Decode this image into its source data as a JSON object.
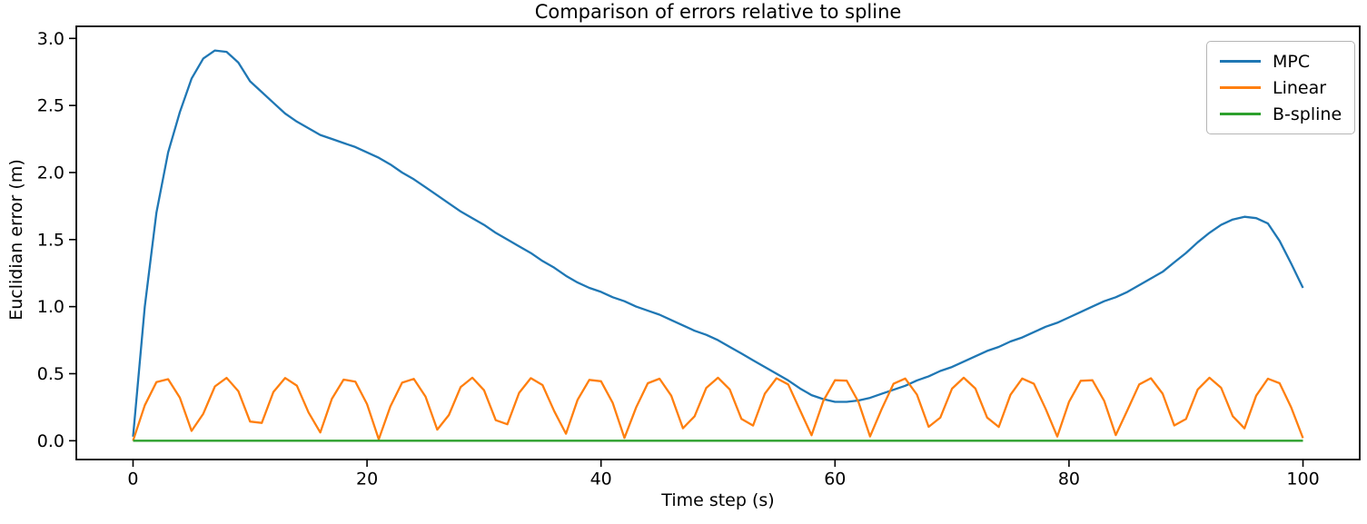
{
  "figure": {
    "title": "Comparison of errors relative to spline",
    "xlabel": "Time step (s)",
    "ylabel": "Euclidian error (m)"
  },
  "legend": {
    "entries": [
      "MPC",
      "Linear",
      "B-spline"
    ]
  },
  "colors": {
    "mpc": "#1f77b4",
    "linear": "#ff7f0e",
    "bspline": "#2ca02c",
    "spine": "#000000",
    "legend_border": "#b5b5b5"
  },
  "chart_data": {
    "type": "line",
    "title": "Comparison of errors relative to spline",
    "xlabel": "Time step (s)",
    "ylabel": "Euclidian error (m)",
    "xlim": [
      -4.85,
      104.85
    ],
    "ylim": [
      -0.14,
      3.09
    ],
    "x_ticks": [
      0,
      20,
      40,
      60,
      80,
      100
    ],
    "y_ticks": [
      0.0,
      0.5,
      1.0,
      1.5,
      2.0,
      2.5,
      3.0
    ],
    "grid": false,
    "legend_position": "upper right",
    "x": [
      0,
      1,
      2,
      3,
      4,
      5,
      6,
      7,
      8,
      9,
      10,
      11,
      12,
      13,
      14,
      15,
      16,
      17,
      18,
      19,
      20,
      21,
      22,
      23,
      24,
      25,
      26,
      27,
      28,
      29,
      30,
      31,
      32,
      33,
      34,
      35,
      36,
      37,
      38,
      39,
      40,
      41,
      42,
      43,
      44,
      45,
      46,
      47,
      48,
      49,
      50,
      51,
      52,
      53,
      54,
      55,
      56,
      57,
      58,
      59,
      60,
      61,
      62,
      63,
      64,
      65,
      66,
      67,
      68,
      69,
      70,
      71,
      72,
      73,
      74,
      75,
      76,
      77,
      78,
      79,
      80,
      81,
      82,
      83,
      84,
      85,
      86,
      87,
      88,
      89,
      90,
      91,
      92,
      93,
      94,
      95,
      96,
      97,
      98,
      99,
      100
    ],
    "series": [
      {
        "name": "MPC",
        "color": "#1f77b4",
        "values": [
          0.03,
          1.0,
          1.7,
          2.15,
          2.45,
          2.7,
          2.85,
          2.91,
          2.9,
          2.82,
          2.68,
          2.6,
          2.52,
          2.44,
          2.38,
          2.33,
          2.28,
          2.25,
          2.22,
          2.19,
          2.15,
          2.11,
          2.06,
          2.0,
          1.95,
          1.89,
          1.83,
          1.77,
          1.71,
          1.66,
          1.61,
          1.55,
          1.5,
          1.45,
          1.4,
          1.34,
          1.29,
          1.23,
          1.18,
          1.14,
          1.11,
          1.07,
          1.04,
          1.0,
          0.97,
          0.94,
          0.9,
          0.86,
          0.82,
          0.79,
          0.75,
          0.7,
          0.65,
          0.6,
          0.55,
          0.5,
          0.45,
          0.39,
          0.34,
          0.31,
          0.29,
          0.29,
          0.3,
          0.32,
          0.35,
          0.38,
          0.41,
          0.45,
          0.48,
          0.52,
          0.55,
          0.59,
          0.63,
          0.67,
          0.7,
          0.74,
          0.77,
          0.81,
          0.85,
          0.88,
          0.92,
          0.96,
          1.0,
          1.04,
          1.07,
          1.11,
          1.16,
          1.21,
          1.26,
          1.33,
          1.4,
          1.48,
          1.55,
          1.61,
          1.65,
          1.67,
          1.66,
          1.62,
          1.49,
          1.32,
          1.14
        ]
      },
      {
        "name": "Linear",
        "color": "#ff7f0e",
        "values": [
          0.0,
          0.264,
          0.437,
          0.459,
          0.321,
          0.073,
          0.201,
          0.405,
          0.469,
          0.37,
          0.143,
          0.133,
          0.364,
          0.468,
          0.411,
          0.211,
          0.062,
          0.313,
          0.456,
          0.441,
          0.273,
          0.011,
          0.256,
          0.433,
          0.461,
          0.329,
          0.083,
          0.192,
          0.4,
          0.47,
          0.377,
          0.153,
          0.123,
          0.357,
          0.467,
          0.415,
          0.22,
          0.052,
          0.305,
          0.454,
          0.444,
          0.282,
          0.021,
          0.247,
          0.429,
          0.463,
          0.336,
          0.093,
          0.182,
          0.394,
          0.47,
          0.383,
          0.163,
          0.113,
          0.35,
          0.466,
          0.42,
          0.229,
          0.041,
          0.297,
          0.451,
          0.448,
          0.29,
          0.032,
          0.238,
          0.425,
          0.464,
          0.344,
          0.104,
          0.172,
          0.388,
          0.47,
          0.389,
          0.173,
          0.103,
          0.343,
          0.464,
          0.425,
          0.238,
          0.031,
          0.289,
          0.447,
          0.451,
          0.298,
          0.042,
          0.229,
          0.42,
          0.466,
          0.351,
          0.114,
          0.162,
          0.382,
          0.47,
          0.395,
          0.183,
          0.092,
          0.336,
          0.463,
          0.429,
          0.247,
          0.02
        ]
      },
      {
        "name": "B-spline",
        "color": "#2ca02c",
        "values": [
          0,
          0,
          0,
          0,
          0,
          0,
          0,
          0,
          0,
          0,
          0,
          0,
          0,
          0,
          0,
          0,
          0,
          0,
          0,
          0,
          0,
          0,
          0,
          0,
          0,
          0,
          0,
          0,
          0,
          0,
          0,
          0,
          0,
          0,
          0,
          0,
          0,
          0,
          0,
          0,
          0,
          0,
          0,
          0,
          0,
          0,
          0,
          0,
          0,
          0,
          0,
          0,
          0,
          0,
          0,
          0,
          0,
          0,
          0,
          0,
          0,
          0,
          0,
          0,
          0,
          0,
          0,
          0,
          0,
          0,
          0,
          0,
          0,
          0,
          0,
          0,
          0,
          0,
          0,
          0,
          0,
          0,
          0,
          0,
          0,
          0,
          0,
          0,
          0,
          0,
          0,
          0,
          0,
          0,
          0,
          0,
          0,
          0,
          0,
          0,
          0
        ]
      }
    ]
  }
}
